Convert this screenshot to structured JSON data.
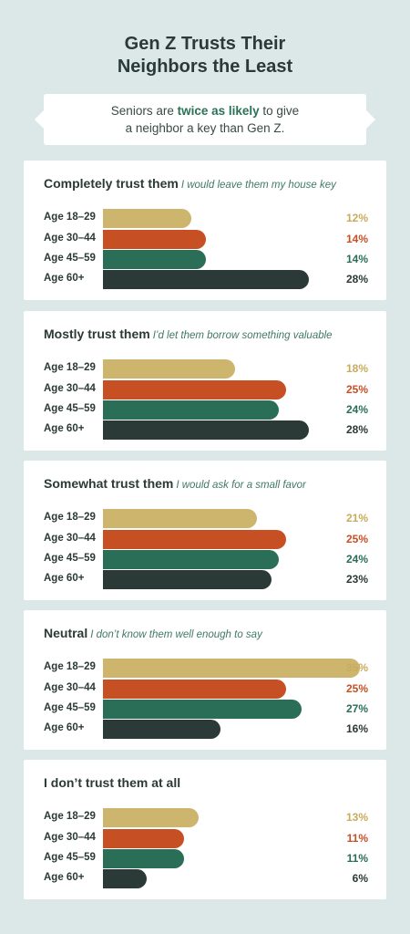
{
  "title_line1": "Gen Z Trusts Their",
  "title_line2": "Neighbors the Least",
  "callout": {
    "pre": "Seniors are ",
    "highlight": "twice as likely",
    "post1": " to give",
    "line2": "a neighbor a key than Gen Z."
  },
  "colors": {
    "age_18_29": "#cdb56e",
    "age_30_44": "#c64f24",
    "age_45_59": "#2a6e58",
    "age_60_plus": "#2b3a36",
    "value_18_29": "#c9ab5c",
    "value_30_44": "#c64f24",
    "value_45_59": "#2a6e58",
    "value_60_plus": "#2b3a36"
  },
  "chart_data": {
    "type": "bar",
    "orientation": "horizontal",
    "categories": [
      "Age 18–29",
      "Age 30–44",
      "Age 45–59",
      "Age 60+"
    ],
    "groups": [
      {
        "title": "Completely trust them",
        "subtitle": "I would leave them my house key",
        "values": [
          12,
          14,
          14,
          28
        ],
        "labels": [
          "12%",
          "14%",
          "14%",
          "28%"
        ]
      },
      {
        "title": "Mostly trust them",
        "subtitle": "I’d let them borrow something valuable",
        "values": [
          18,
          25,
          24,
          28
        ],
        "labels": [
          "18%",
          "25%",
          "24%",
          "28%"
        ]
      },
      {
        "title": "Somewhat trust them",
        "subtitle": "I would ask for a small favor",
        "values": [
          21,
          25,
          24,
          23
        ],
        "labels": [
          "21%",
          "25%",
          "24%",
          "23%"
        ]
      },
      {
        "title": "Neutral",
        "subtitle": "I don’t know them well enough to say",
        "values": [
          35,
          25,
          27,
          16
        ],
        "labels": [
          "35%",
          "25%",
          "27%",
          "16%"
        ]
      },
      {
        "title": "I don’t trust them at all",
        "subtitle": "",
        "values": [
          13,
          11,
          11,
          6
        ],
        "labels": [
          "13%",
          "11%",
          "11%",
          "6%"
        ]
      }
    ],
    "xlim": [
      0,
      35
    ]
  }
}
